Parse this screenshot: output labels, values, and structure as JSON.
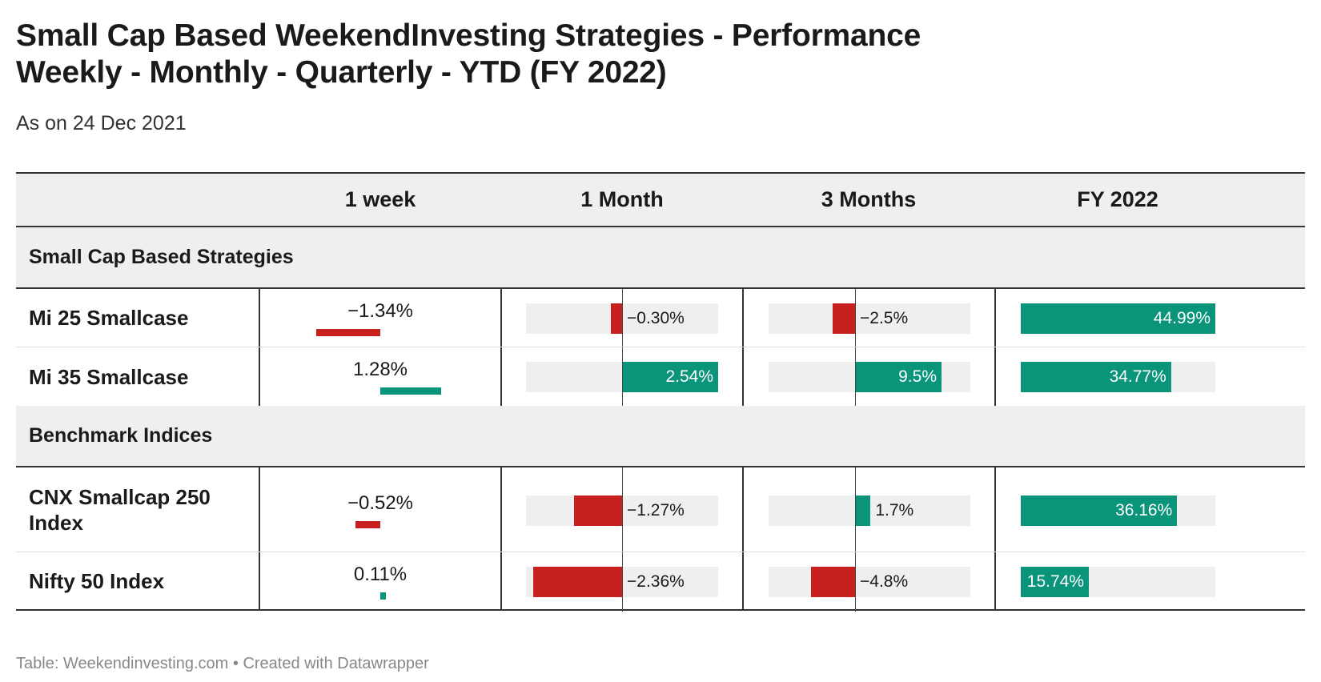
{
  "header": {
    "title_line1": "Small Cap Based WeekendInvesting Strategies - Performance",
    "title_line2": "Weekly - Monthly - Quarterly - YTD (FY 2022)",
    "subtitle": "As on 24 Dec 2021"
  },
  "footer": "Table: Weekendinvesting.com • Created with Datawrapper",
  "colors": {
    "positive": "#0a947a",
    "negative": "#c8201f",
    "bar_background": "#efefef",
    "header_background": "#efefef"
  },
  "chart_data": {
    "type": "table",
    "columns": [
      "1 week",
      "1 Month",
      "3 Months",
      "FY 2022"
    ],
    "groups": [
      {
        "name": "Small Cap Based Strategies",
        "rows": [
          {
            "name": "Mi 25 Smallcase",
            "values": [
              -1.34,
              -0.3,
              -2.5,
              44.99
            ],
            "labels": [
              "−1.34%",
              "−0.30%",
              "−2.5%",
              "44.99%"
            ]
          },
          {
            "name": "Mi 35 Smallcase",
            "values": [
              1.28,
              2.54,
              9.5,
              34.77
            ],
            "labels": [
              "1.28%",
              "2.54%",
              "9.5%",
              "34.77%"
            ]
          }
        ]
      },
      {
        "name": "Benchmark Indices",
        "rows": [
          {
            "name": "CNX Smallcap 250 Index",
            "values": [
              -0.52,
              -1.27,
              1.7,
              36.16
            ],
            "labels": [
              "−0.52%",
              "−1.27%",
              "1.7%",
              "36.16%"
            ]
          },
          {
            "name": "Nifty 50 Index",
            "values": [
              0.11,
              -2.36,
              -4.8,
              15.74
            ],
            "labels": [
              "0.11%",
              "−2.36%",
              "−4.8%",
              "15.74%"
            ]
          }
        ]
      }
    ]
  }
}
